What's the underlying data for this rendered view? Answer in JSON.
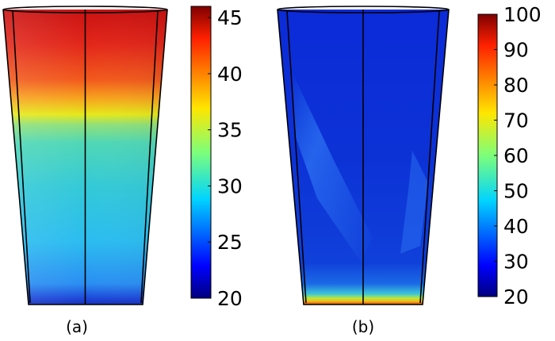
{
  "panels": [
    {
      "caption": "(a)",
      "colorbar": {
        "min": 20,
        "max": 46,
        "ticks": [
          "20",
          "25",
          "30",
          "35",
          "40",
          "45"
        ],
        "tick_values": [
          20,
          25,
          30,
          35,
          40,
          45
        ]
      }
    },
    {
      "caption": "(b)",
      "colorbar": {
        "min": 20,
        "max": 100,
        "ticks": [
          "20",
          "30",
          "40",
          "50",
          "60",
          "70",
          "80",
          "90",
          "100"
        ],
        "tick_values": [
          20,
          30,
          40,
          50,
          60,
          70,
          80,
          90,
          100
        ]
      }
    }
  ],
  "colormap": "jet"
}
